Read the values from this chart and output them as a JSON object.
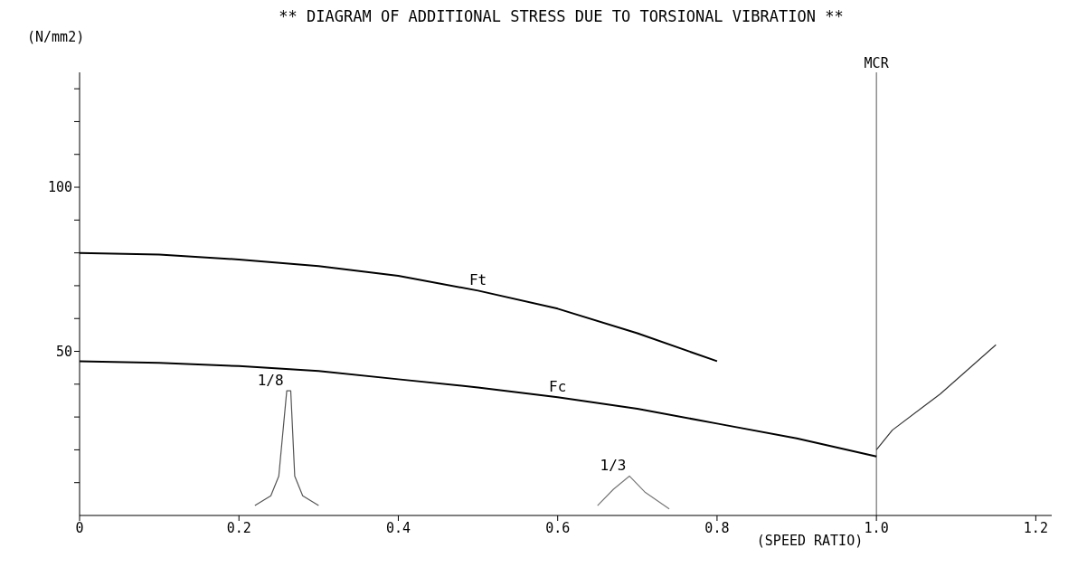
{
  "chart_data": {
    "type": "line",
    "title": "** DIAGRAM OF ADDITIONAL STRESS DUE TO TORSIONAL VIBRATION **",
    "xlabel": "(SPEED RATIO)",
    "ylabel": "(N/mm2)",
    "series": [
      {
        "name": "Ft",
        "color": "#000000",
        "x": [
          0,
          0.1,
          0.2,
          0.3,
          0.4,
          0.5,
          0.6,
          0.7,
          0.8
        ],
        "values": [
          80,
          79.5,
          78,
          76,
          73,
          68.5,
          63,
          55.5,
          47
        ]
      },
      {
        "name": "Fc",
        "color": "#000000",
        "x": [
          0,
          0.1,
          0.2,
          0.3,
          0.4,
          0.5,
          0.6,
          0.7,
          0.8,
          0.9,
          1.0
        ],
        "values": [
          47,
          46.5,
          45.5,
          44,
          41.5,
          39,
          36,
          32.5,
          28,
          23.5,
          18
        ]
      },
      {
        "color": "#333333",
        "x": [
          1.0,
          1.02,
          1.08,
          1.15
        ],
        "values": [
          20,
          26,
          37,
          52
        ]
      },
      {
        "name": "1/8",
        "color": "#555555",
        "x": [
          0.22,
          0.24,
          0.25,
          0.26,
          0.265,
          0.27,
          0.28,
          0.3
        ],
        "values": [
          3,
          6,
          12,
          38,
          38,
          12,
          6,
          3
        ]
      },
      {
        "name": "1/3",
        "color": "#777777",
        "x": [
          0.65,
          0.67,
          0.69,
          0.71,
          0.74
        ],
        "values": [
          3,
          8,
          12,
          7,
          2
        ]
      }
    ],
    "xlim": [
      0,
      1.22
    ],
    "xticks": [
      0,
      0.2,
      0.4,
      0.6,
      0.8,
      {
        "value": 1,
        "label": "1.0"
      },
      1.2
    ],
    "ylim": [
      0,
      135
    ],
    "yticks": [
      {
        "value": 10,
        "label": null
      },
      {
        "value": 20,
        "label": null
      },
      {
        "value": 30,
        "label": null
      },
      {
        "value": 40,
        "label": null
      },
      50,
      {
        "value": 60,
        "label": null
      },
      {
        "value": 70,
        "label": null
      },
      {
        "value": 80,
        "label": null
      },
      {
        "value": 90,
        "label": null
      },
      100,
      {
        "value": 110,
        "label": null
      },
      {
        "value": 120,
        "label": null
      },
      {
        "value": 130,
        "label": null
      }
    ],
    "ref_lines": [
      {
        "axis": "x",
        "value": 1.0,
        "label": "MCR",
        "color": "#555555"
      }
    ],
    "grid": false,
    "legend": false,
    "marker": "none",
    "line_style": "solid"
  }
}
